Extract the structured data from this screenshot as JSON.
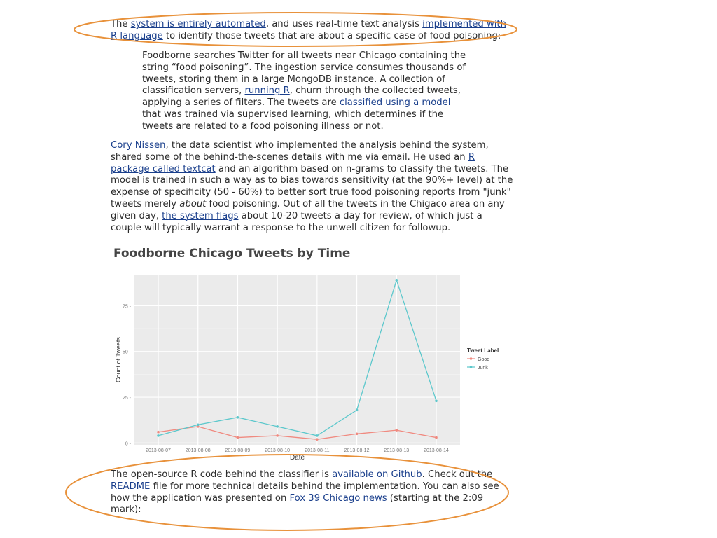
{
  "paragraph1": {
    "t1": "The ",
    "link1": "system is entirely automated",
    "t2": ", and uses real-time text analysis ",
    "link2": "implemented with R language",
    "t3": " to identify those tweets that are about a specific case of food poisoning:"
  },
  "blockquote": {
    "t1": "Foodborne searches Twitter for all tweets near Chicago containing the string “food poisoning”. The ingestion service consumes thousands of tweets, storing them in a large MongoDB instance. A collection of classification servers, ",
    "link1": "running R",
    "t2": ", churn through the collected tweets, applying a series of filters. The tweets are ",
    "link2": "classified using a model",
    "t3": " that was trained via supervised learning, which determines if the tweets are related to a food poisoning illness or not."
  },
  "paragraph2": {
    "link1": "Cory Nissen",
    "t1": ", the data scientist who implemented the analysis behind the system, shared some of the behind-the-scenes details with me via email. He used an ",
    "link2": "R package called textcat",
    "t2": " and an algorithm based on n-grams to classify the tweets. The model is trained in such a way as to bias towards sensitivity (at the 90%+ level) at the expense of specificity (50 - 60%) to better sort true food poisoning reports from \"junk\" tweets merely ",
    "em1": "about",
    "t3": " food poisoning. Out of all the tweets in the Chigaco area on any given day, ",
    "link3": "the system flags",
    "t4": " about 10-20 tweets a day for review, of which just a couple will typically warrant a response to the unwell citizen for followup."
  },
  "paragraph3": {
    "t1": "The open-source R code behind the classifier is ",
    "link1": "available on Github",
    "t2": ". Check out the ",
    "link2": "README",
    "t3": " file for more technical details behind the implementation. You can also see how the application was presented on ",
    "link3": "Fox 39 Chicago news",
    "t4": " (starting at the 2:09 mark):"
  },
  "chart_data": {
    "type": "line",
    "title": "Foodborne Chicago Tweets by Time",
    "xlabel": "Date",
    "ylabel": "Count of Tweets",
    "x": [
      "2013-08-07",
      "2013-08-08",
      "2013-08-09",
      "2013-08-10",
      "2013-08-11",
      "2013-08-12",
      "2013-08-13",
      "2013-08-14"
    ],
    "ylim": [
      -1,
      92
    ],
    "yticks": [
      "0",
      "25",
      "50",
      "75"
    ],
    "ytick_values": [
      0,
      25,
      50,
      75
    ],
    "grid": true,
    "legend_title": "Tweet Label",
    "legend_position": "right",
    "series": [
      {
        "name": "Good",
        "color": "#f08a80",
        "values": [
          6,
          9,
          3,
          4,
          2,
          5,
          7,
          3
        ]
      },
      {
        "name": "Junk",
        "color": "#5cc8cc",
        "values": [
          4,
          10,
          14,
          9,
          4,
          18,
          89,
          23
        ]
      }
    ]
  },
  "annotation_color": "#e8913a"
}
